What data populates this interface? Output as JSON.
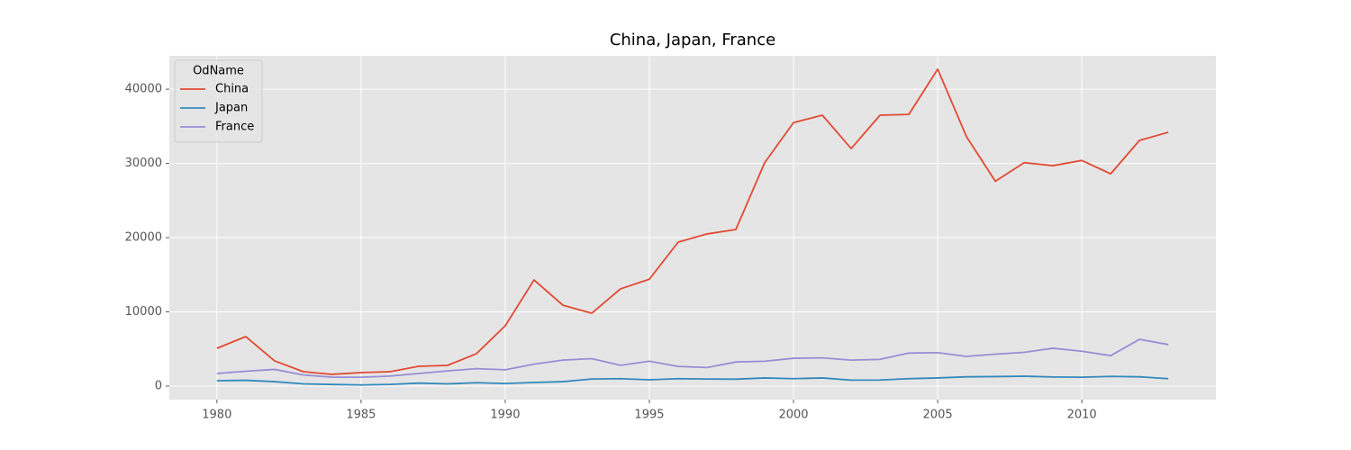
{
  "chart_data": {
    "type": "line",
    "title": "China, Japan, France",
    "x": [
      1980,
      1981,
      1982,
      1983,
      1984,
      1985,
      1986,
      1987,
      1988,
      1989,
      1990,
      1991,
      1992,
      1993,
      1994,
      1995,
      1996,
      1997,
      1998,
      1999,
      2000,
      2001,
      2002,
      2003,
      2004,
      2005,
      2006,
      2007,
      2008,
      2009,
      2010,
      2011,
      2012,
      2013
    ],
    "series": [
      {
        "name": "China",
        "color": "#E24A33",
        "values": [
          5090,
          6670,
          3400,
          1940,
          1580,
          1820,
          1940,
          2670,
          2790,
          4360,
          8120,
          14300,
          10900,
          9820,
          13100,
          14400,
          19400,
          20500,
          21100,
          30100,
          35500,
          36500,
          32000,
          36500,
          36600,
          42700,
          33600,
          27600,
          30100,
          29700,
          30400,
          28600,
          33100,
          34200
        ]
      },
      {
        "name": "Japan",
        "color": "#348ABD",
        "values": [
          730,
          780,
          600,
          300,
          220,
          150,
          230,
          400,
          300,
          450,
          350,
          480,
          600,
          950,
          1000,
          850,
          1000,
          950,
          930,
          1100,
          1000,
          1100,
          800,
          820,
          1000,
          1100,
          1250,
          1280,
          1330,
          1230,
          1200,
          1300,
          1250,
          1000
        ]
      },
      {
        "name": "France",
        "color": "#988ED5",
        "values": [
          1700,
          2000,
          2250,
          1500,
          1200,
          1200,
          1350,
          1700,
          2050,
          2350,
          2200,
          2950,
          3500,
          3700,
          2800,
          3350,
          2650,
          2500,
          3250,
          3350,
          3750,
          3800,
          3500,
          3600,
          4450,
          4500,
          4000,
          4300,
          4550,
          5100,
          4700,
          4100,
          6300,
          5600
        ]
      }
    ],
    "xlim": [
      1978.35,
      2014.65
    ],
    "xticks": [
      1980,
      1985,
      1990,
      1995,
      2000,
      2005,
      2010
    ],
    "ylim": [
      -1820,
      44500
    ],
    "yticks": [
      0,
      10000,
      20000,
      30000,
      40000
    ],
    "grid": true,
    "legend_title": "OdName",
    "legend_position": "upper left"
  }
}
